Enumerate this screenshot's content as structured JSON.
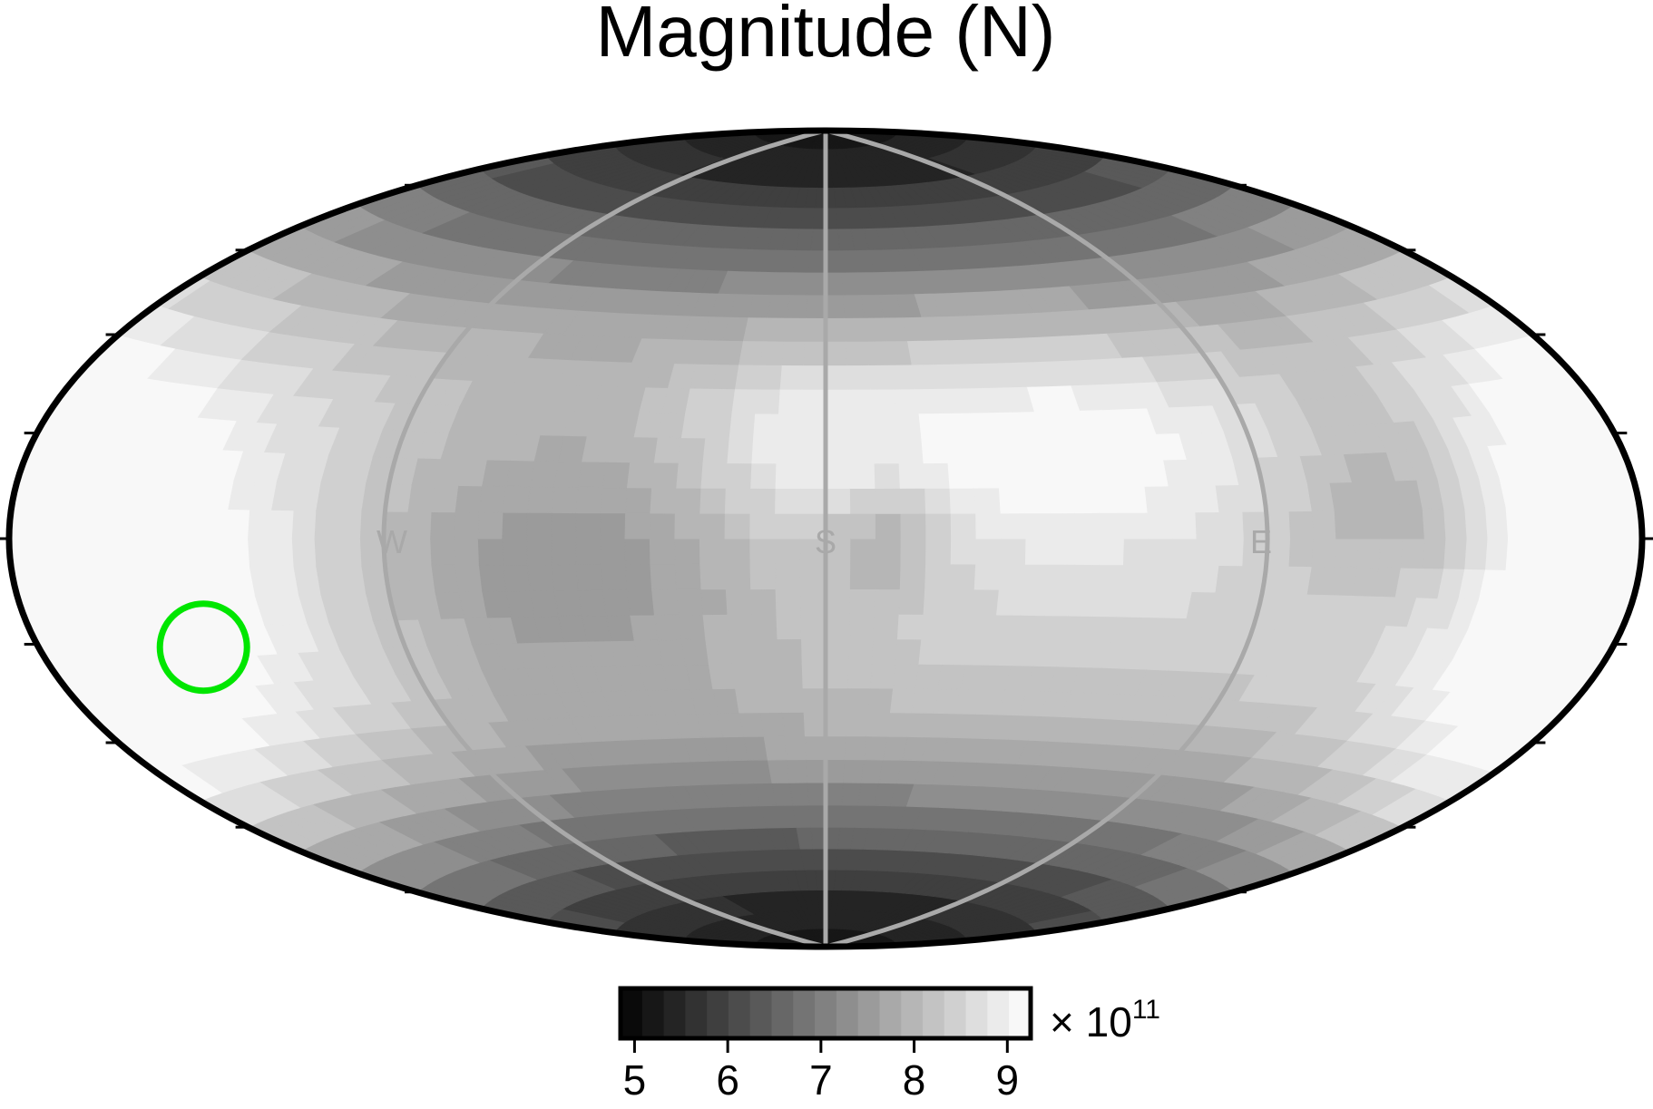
{
  "chart_data": {
    "type": "heatmap",
    "projection": "Hammer-Aitoff (equal-area world projection)",
    "title": "Magnitude (N)",
    "colorbar": {
      "label": "× 10",
      "label_exponent": "11",
      "range": [
        4.85,
        9.25
      ],
      "step": 0.23,
      "ticks": [
        "5",
        "6",
        "7",
        "8",
        "9"
      ],
      "tick_values": [
        5,
        6,
        7,
        8,
        9
      ],
      "colormap": "gray (black = low, white = high)"
    },
    "direction_labels": [
      "W",
      "S",
      "E"
    ],
    "field_features": [
      {
        "name": "global minimum band (north pole region)",
        "lon": 0,
        "lat": 85,
        "value": 4.9
      },
      {
        "name": "global minimum band (south pole region)",
        "lon": 0,
        "lat": -80,
        "value": 5.0
      },
      {
        "name": "left-lobe maximum",
        "lon": -150,
        "lat": -12,
        "value": 9.2
      },
      {
        "name": "right-lobe maximum",
        "lon": 170,
        "lat": -5,
        "value": 9.2
      },
      {
        "name": "central high",
        "lon": -7,
        "lat": 20,
        "value": 8.2
      },
      {
        "name": "right-center high",
        "lon": 50,
        "lat": 20,
        "value": 8.4
      },
      {
        "name": "left-center trough",
        "lon": -55,
        "lat": -5,
        "value": 6.4
      },
      {
        "name": "right minor trough",
        "lon": 120,
        "lat": 5,
        "value": 6.8
      },
      {
        "name": "center small low",
        "lon": 12,
        "lat": 0,
        "value": 6.5
      }
    ],
    "marker": {
      "type": "circle",
      "color": "#00e600",
      "lon": -137,
      "lat": -18
    }
  },
  "colors": {
    "marker": "#00e600",
    "guide_lines": "#a9a9a9",
    "frame": "#000000"
  }
}
